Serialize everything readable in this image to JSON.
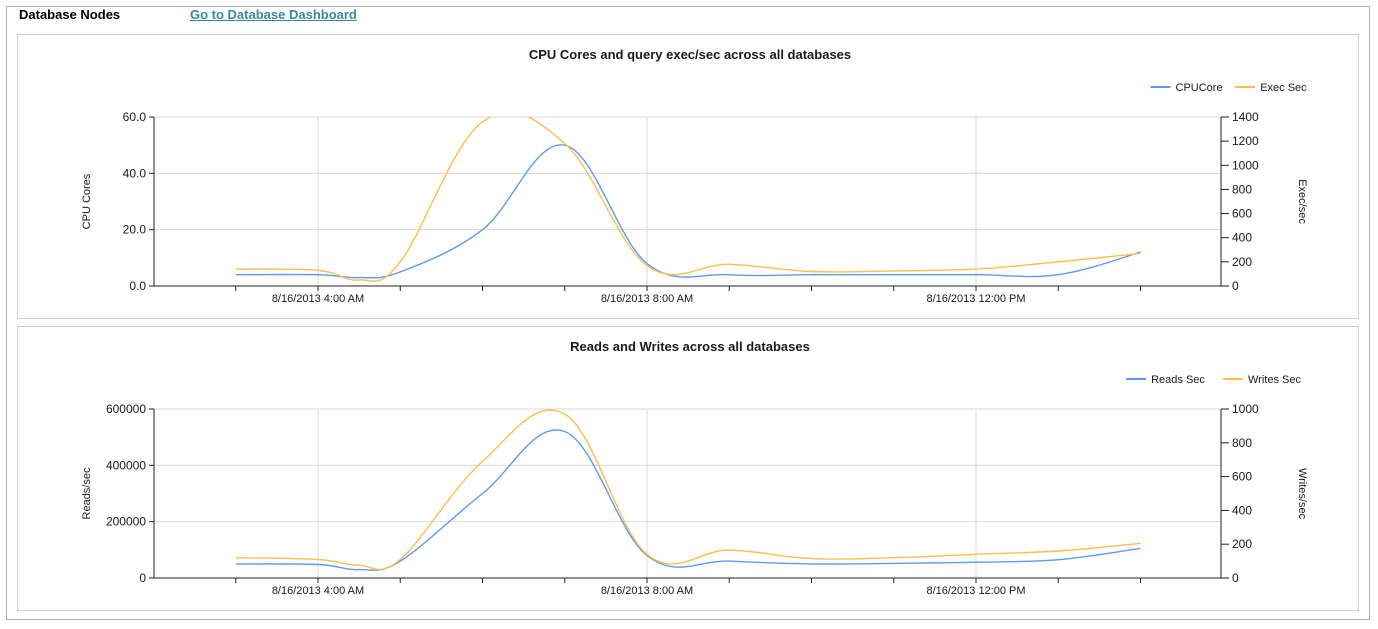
{
  "header": {
    "title": "Database Nodes",
    "link": "Go to Database Dashboard"
  },
  "colors": {
    "series1": "#5b9bf2",
    "series2": "#ffbd4a",
    "grid": "#d9d9d9",
    "axis": "#222222"
  },
  "chart_data": [
    {
      "type": "line",
      "title": "CPU Cores and query exec/sec across all databases",
      "ylabel": "CPU Cores",
      "y2label": "Exec/sec",
      "xlabel": "",
      "x_ticks": [
        "8/16/2013 4:00 AM",
        "8/16/2013 8:00 AM",
        "8/16/2013 12:00 PM"
      ],
      "y_ticks": [
        "60.0",
        "40.0",
        "20.0",
        "0.0"
      ],
      "y2_ticks": [
        "1400",
        "1200",
        "1000",
        "800",
        "600",
        "400",
        "200",
        "0"
      ],
      "ylim": [
        0,
        60
      ],
      "y2lim": [
        0,
        1400
      ],
      "grid": true,
      "legend": "top-right",
      "x": [
        "8/16/2013 3:00 AM",
        "8/16/2013 4:00 AM",
        "8/16/2013 4:30 AM",
        "8/16/2013 5:00 AM",
        "8/16/2013 6:00 AM",
        "8/16/2013 7:00 AM",
        "8/16/2013 8:00 AM",
        "8/16/2013 9:00 AM",
        "8/16/2013 10:00 AM",
        "8/16/2013 11:00 AM",
        "8/16/2013 12:00 PM",
        "8/16/2013 1:00 PM",
        "8/16/2013 2:00 PM"
      ],
      "series": [
        {
          "name": "CPUCore",
          "axis": "left",
          "values": [
            4.0,
            4.0,
            3.0,
            5.0,
            20.0,
            50.0,
            8.0,
            4.0,
            4.0,
            4.0,
            4.0,
            4.0,
            12.0
          ]
        },
        {
          "name": "Exec Sec",
          "axis": "right",
          "values": [
            140,
            130,
            50,
            200,
            1360,
            1180,
            170,
            180,
            120,
            125,
            140,
            200,
            270
          ]
        }
      ]
    },
    {
      "type": "line",
      "title": "Reads and Writes across all databases",
      "ylabel": "Reads/sec",
      "y2label": "Writes/sec",
      "xlabel": "",
      "x_ticks": [
        "8/16/2013 4:00 AM",
        "8/16/2013 8:00 AM",
        "8/16/2013 12:00 PM"
      ],
      "y_ticks": [
        "600000",
        "400000",
        "200000",
        "0"
      ],
      "y2_ticks": [
        "1000",
        "800",
        "600",
        "400",
        "200",
        "0"
      ],
      "ylim": [
        0,
        600000
      ],
      "y2lim": [
        0,
        1000
      ],
      "grid": true,
      "legend": "top-right",
      "x": [
        "8/16/2013 3:00 AM",
        "8/16/2013 4:00 AM",
        "8/16/2013 4:30 AM",
        "8/16/2013 5:00 AM",
        "8/16/2013 6:00 AM",
        "8/16/2013 7:00 AM",
        "8/16/2013 8:00 AM",
        "8/16/2013 9:00 AM",
        "8/16/2013 10:00 AM",
        "8/16/2013 11:00 AM",
        "8/16/2013 12:00 PM",
        "8/16/2013 1:00 PM",
        "8/16/2013 2:00 PM"
      ],
      "series": [
        {
          "name": "Reads Sec",
          "axis": "left",
          "values": [
            50000,
            48000,
            30000,
            60000,
            300000,
            520000,
            80000,
            60000,
            50000,
            52000,
            56000,
            65000,
            105000
          ]
        },
        {
          "name": "Writes Sec",
          "axis": "right",
          "values": [
            120,
            110,
            75,
            110,
            690,
            970,
            140,
            165,
            115,
            120,
            140,
            160,
            205
          ]
        }
      ]
    }
  ]
}
